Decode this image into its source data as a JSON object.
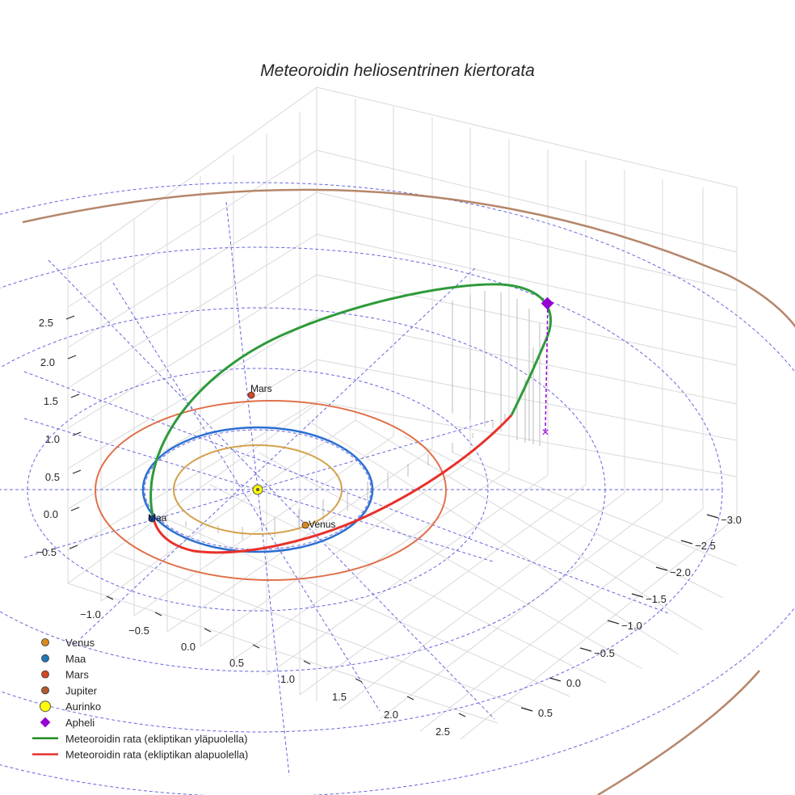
{
  "chart_data": {
    "type": "scatter3d",
    "title": "Meteoroidin heliosentrinen kiertorata",
    "xlabel": "",
    "ylabel": "",
    "zlabel": "",
    "xlim": [
      -1.3,
      2.8
    ],
    "ylim": [
      -3.0,
      0.8
    ],
    "zlim": [
      -0.7,
      2.7
    ],
    "x_ticks": [
      "−1.0",
      "−0.5",
      "0.0",
      "0.5",
      "1.0",
      "1.5",
      "2.0",
      "2.5"
    ],
    "y_ticks": [
      "−3.0",
      "−2.5",
      "−2.0",
      "−1.5",
      "−1.0",
      "−0.5",
      "0.0",
      "0.5"
    ],
    "z_ticks": [
      "−0.5",
      "0.0",
      "0.5",
      "1.0",
      "1.5",
      "2.0",
      "2.5"
    ],
    "grid": true,
    "legend_position": "bottom-left",
    "planet_orbits": [
      {
        "name": "Venus",
        "radius_au": 0.72,
        "color": "#d4a24c"
      },
      {
        "name": "Maa",
        "radius_au": 1.0,
        "color": "#1f77b4"
      },
      {
        "name": "Mars",
        "radius_au": 1.52,
        "color": "#e0704a"
      },
      {
        "name": "Jupiter",
        "radius_au": 5.2,
        "color": "#b5866a"
      }
    ],
    "planet_labels": {
      "venus": "Venus",
      "maa": "Maa",
      "mars": "Mars"
    },
    "meteoroid_orbit": {
      "above_label": "Meteoroidin rata (ekliptikan yläpuolella)",
      "below_label": "Meteoroidin rata (ekliptikan alapuolella)",
      "above_color": "#2e9a3a",
      "below_color": "#e8302a"
    },
    "aphelion_marker": "×",
    "legend": [
      {
        "label": "Venus",
        "marker": "dot",
        "color": "#d98a1f"
      },
      {
        "label": "Maa",
        "marker": "dot",
        "color": "#1f77b4"
      },
      {
        "label": "Mars",
        "marker": "dot",
        "color": "#d4481f"
      },
      {
        "label": "Jupiter",
        "marker": "dot",
        "color": "#b35a2a"
      },
      {
        "label": "Aurinko",
        "marker": "sun",
        "color": "#ffff00"
      },
      {
        "label": "Apheli",
        "marker": "diamond",
        "color": "#9400d3"
      },
      {
        "label": "Meteoroidin rata (ekliptikan yläpuolella)",
        "marker": "line",
        "color": "#228b22"
      },
      {
        "label": "Meteoroidin rata (ekliptikan alapuolella)",
        "marker": "line",
        "color": "#e8302a"
      }
    ]
  }
}
